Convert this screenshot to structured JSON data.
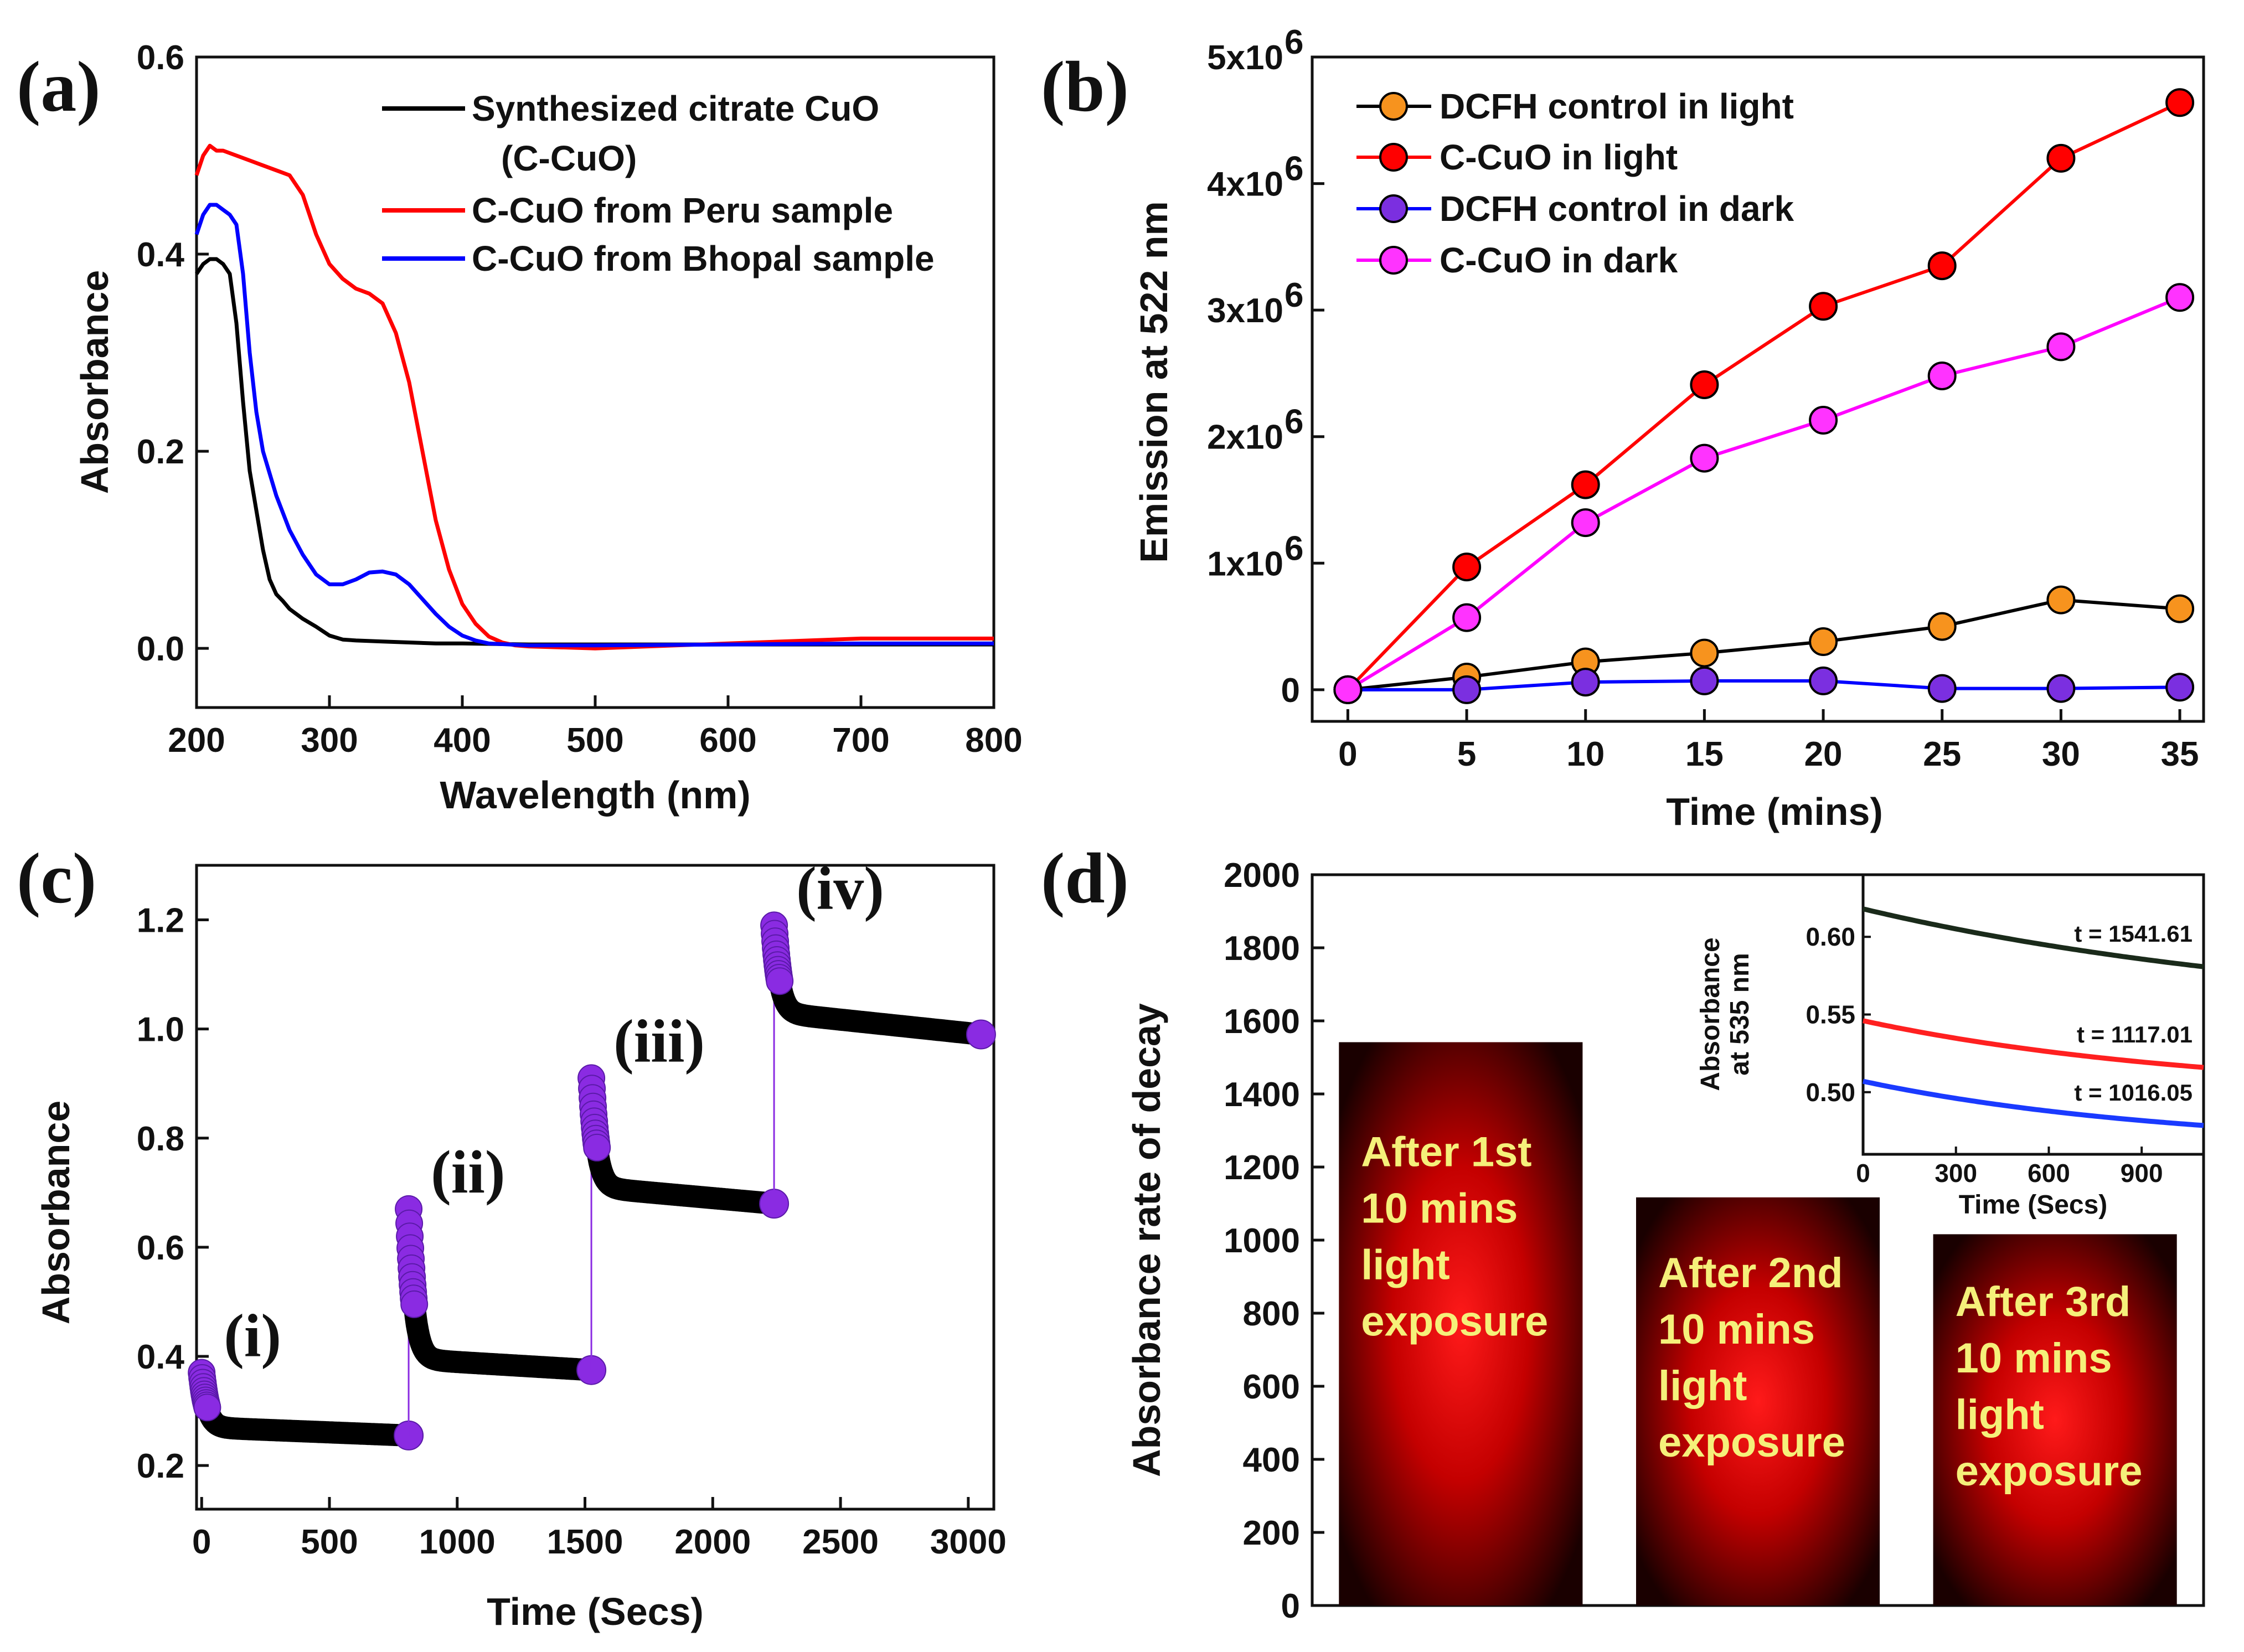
{
  "chart_data": [
    {
      "id": "a",
      "panel_label": "(a)",
      "type": "line",
      "xlabel": "Wavelength (nm)",
      "ylabel": "Absorbance",
      "xlim": [
        200,
        800
      ],
      "ylim": [
        -0.06,
        0.6
      ],
      "xticks": [
        200,
        300,
        400,
        500,
        600,
        700,
        800
      ],
      "yticks": [
        0.0,
        0.2,
        0.4,
        0.6
      ],
      "ytick_labels": [
        "0.0",
        "0.2",
        "0.4",
        "0.6"
      ],
      "legend_position": "top-right",
      "series": [
        {
          "name": "Synthesized citrate CuO",
          "name_line2": "(C-CuO)",
          "color": "#000000",
          "x": [
            200,
            205,
            210,
            215,
            220,
            225,
            230,
            235,
            240,
            245,
            250,
            255,
            260,
            265,
            270,
            280,
            290,
            300,
            310,
            320,
            340,
            360,
            380,
            400,
            450,
            500,
            600,
            700,
            800
          ],
          "y": [
            0.38,
            0.39,
            0.395,
            0.395,
            0.39,
            0.38,
            0.33,
            0.25,
            0.18,
            0.14,
            0.1,
            0.07,
            0.055,
            0.048,
            0.04,
            0.03,
            0.022,
            0.013,
            0.009,
            0.008,
            0.007,
            0.006,
            0.005,
            0.005,
            0.004,
            0.004,
            0.004,
            0.004,
            0.004
          ]
        },
        {
          "name": "C-CuO from Peru sample",
          "color": "#ff0000",
          "x": [
            200,
            205,
            210,
            215,
            220,
            230,
            240,
            250,
            260,
            270,
            280,
            290,
            300,
            310,
            320,
            330,
            340,
            350,
            360,
            370,
            380,
            390,
            400,
            410,
            420,
            430,
            440,
            450,
            500,
            600,
            700,
            800
          ],
          "y": [
            0.48,
            0.5,
            0.51,
            0.505,
            0.505,
            0.5,
            0.495,
            0.49,
            0.485,
            0.48,
            0.46,
            0.42,
            0.39,
            0.375,
            0.365,
            0.36,
            0.35,
            0.32,
            0.27,
            0.2,
            0.13,
            0.08,
            0.045,
            0.025,
            0.012,
            0.006,
            0.003,
            0.002,
            0.0,
            0.005,
            0.01,
            0.01
          ]
        },
        {
          "name": "C-CuO from Bhopal sample",
          "color": "#0000ff",
          "x": [
            200,
            205,
            210,
            215,
            220,
            225,
            230,
            235,
            240,
            245,
            250,
            260,
            270,
            280,
            290,
            300,
            310,
            320,
            330,
            340,
            350,
            360,
            370,
            380,
            390,
            400,
            410,
            420,
            450,
            500,
            600,
            700,
            800
          ],
          "y": [
            0.42,
            0.44,
            0.45,
            0.45,
            0.445,
            0.44,
            0.43,
            0.38,
            0.3,
            0.24,
            0.2,
            0.155,
            0.12,
            0.095,
            0.075,
            0.065,
            0.065,
            0.07,
            0.077,
            0.078,
            0.075,
            0.065,
            0.05,
            0.035,
            0.022,
            0.013,
            0.008,
            0.005,
            0.003,
            0.003,
            0.004,
            0.005,
            0.005
          ]
        }
      ]
    },
    {
      "id": "b",
      "panel_label": "(b)",
      "type": "line",
      "xlabel": "Time (mins)",
      "ylabel": "Emission at 522 nm",
      "xlim": [
        -1.5,
        36
      ],
      "ylim": [
        -250000,
        5000000
      ],
      "xticks": [
        0,
        5,
        10,
        15,
        20,
        25,
        30,
        35
      ],
      "yticks": [
        0,
        1000000,
        2000000,
        3000000,
        4000000,
        5000000
      ],
      "ytick_labels": [
        "0",
        "1x10",
        "2x10",
        "3x10",
        "4x10",
        "5x10"
      ],
      "ytick_exponent": "6",
      "legend_position": "top-left",
      "series": [
        {
          "name": "DCFH control in light",
          "color": "#000000",
          "marker_color": "#f7931e",
          "x": [
            0,
            5,
            10,
            15,
            20,
            25,
            30,
            35
          ],
          "y": [
            0,
            100000,
            220000,
            290000,
            380000,
            500000,
            710000,
            640000
          ]
        },
        {
          "name": "C-CuO in light",
          "color": "#ff0000",
          "marker_color": "#ff0000",
          "x": [
            0,
            5,
            10,
            15,
            20,
            25,
            30,
            35
          ],
          "y": [
            0,
            970000,
            1620000,
            2410000,
            3030000,
            3350000,
            4200000,
            4640000
          ]
        },
        {
          "name": "DCFH control in dark",
          "color": "#0000ff",
          "marker_color": "#7b2fe0",
          "x": [
            0,
            5,
            10,
            15,
            20,
            25,
            30,
            35
          ],
          "y": [
            0,
            0,
            60000,
            70000,
            70000,
            10000,
            10000,
            20000
          ]
        },
        {
          "name": "C-CuO in dark",
          "color": "#ff00ff",
          "marker_color": "#ff33ff",
          "x": [
            0,
            5,
            10,
            15,
            20,
            25,
            30,
            35
          ],
          "y": [
            0,
            570000,
            1320000,
            1830000,
            2130000,
            2480000,
            2710000,
            3100000
          ]
        }
      ]
    },
    {
      "id": "c",
      "panel_label": "(c)",
      "type": "scatter",
      "xlabel": "Time (Secs)",
      "ylabel": "Absorbance",
      "xlim": [
        -20,
        3100
      ],
      "ylim": [
        0.12,
        1.3
      ],
      "xticks": [
        0,
        500,
        1000,
        1500,
        2000,
        2500,
        3000
      ],
      "yticks": [
        0.2,
        0.4,
        0.6,
        0.8,
        1.0,
        1.2
      ],
      "ytick_labels": [
        "0.2",
        "0.4",
        "0.6",
        "0.8",
        "1.0",
        "1.2"
      ],
      "marker_color": "#8a2be2",
      "dense_color": "#000000",
      "segments": [
        {
          "label": "(i)",
          "t_start": 0,
          "t_end": 810,
          "y_peak": 0.37,
          "y_plateau": 0.27,
          "y_end": 0.255
        },
        {
          "label": "(ii)",
          "t_start": 810,
          "t_end": 1525,
          "y_peak": 0.67,
          "y_plateau": 0.395,
          "y_end": 0.375
        },
        {
          "label": "(iii)",
          "t_start": 1525,
          "t_end": 2240,
          "y_peak": 0.91,
          "y_plateau": 0.71,
          "y_end": 0.68
        },
        {
          "label": "(iv)",
          "t_start": 2240,
          "t_end": 3050,
          "y_peak": 1.19,
          "y_plateau": 1.03,
          "y_end": 0.99
        }
      ]
    },
    {
      "id": "d",
      "panel_label": "(d)",
      "type": "bar",
      "xlabel": "",
      "ylabel": "Absorbance rate of decay",
      "ylim": [
        0,
        2000
      ],
      "yticks": [
        0,
        200,
        400,
        600,
        800,
        1000,
        1200,
        1400,
        1600,
        1800,
        2000
      ],
      "values": [
        1541.61,
        1117.01,
        1016.05
      ],
      "bar_labels": [
        [
          "After 1st",
          "10 mins",
          "light",
          "exposure"
        ],
        [
          "After 2nd",
          "10 mins",
          "light",
          "exposure"
        ],
        [
          "After 3rd",
          "10 mins",
          "light",
          "exposure"
        ]
      ],
      "inset": {
        "type": "line",
        "xlabel": "Time (Secs)",
        "ylabel_line1": "Absorbance",
        "ylabel_line2": "at 535 nm",
        "xlim": [
          0,
          1100
        ],
        "ylim": [
          0.46,
          0.64
        ],
        "xticks": [
          0,
          300,
          600,
          900
        ],
        "yticks": [
          0.5,
          0.55,
          0.6
        ],
        "ytick_labels": [
          "0.50",
          "0.55",
          "0.60"
        ],
        "series": [
          {
            "label": "t = 1541.61",
            "color": "#1a2a1a",
            "A": 0.073,
            "tau": 1541.61,
            "base": 0.545
          },
          {
            "label": "t = 1117.01",
            "color": "#ff2020",
            "A": 0.048,
            "tau": 1117.01,
            "base": 0.498
          },
          {
            "label": "t = 1016.05",
            "color": "#1a3aff",
            "A": 0.043,
            "tau": 1016.05,
            "base": 0.464
          }
        ]
      }
    }
  ]
}
